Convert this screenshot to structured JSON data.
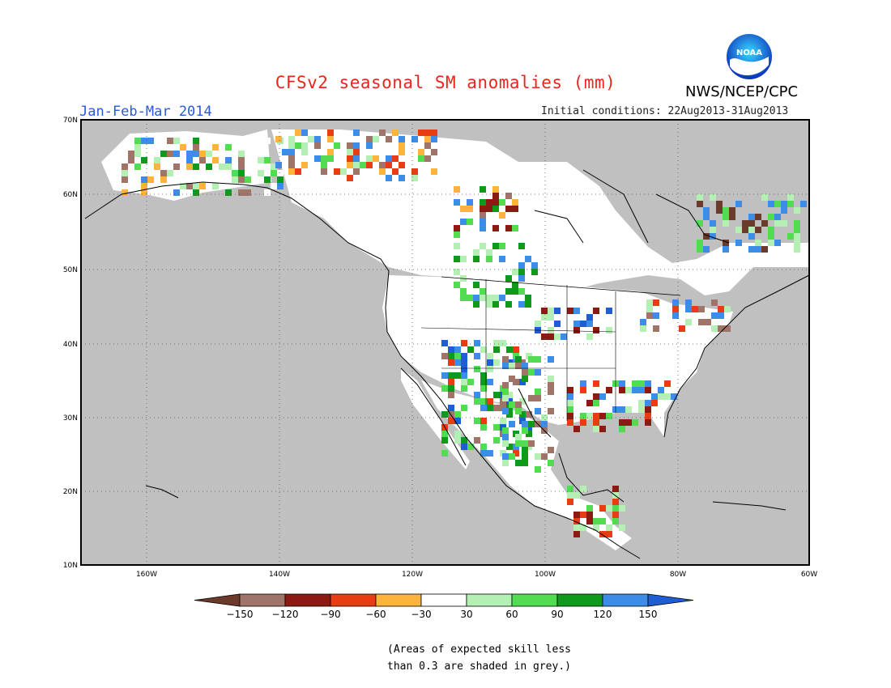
{
  "title": "CFSv2 seasonal SM anomalies (mm)",
  "period": "Jan-Feb-Mar 2014",
  "initial_conditions": "Initial conditions: 22Aug2013-31Aug2013",
  "agency": "NWS/NCEP/CPC",
  "logo_text": "NOAA",
  "lat_labels": [
    "70N",
    "60N",
    "50N",
    "40N",
    "30N",
    "20N",
    "10N"
  ],
  "lon_labels": [
    "160W",
    "140W",
    "120W",
    "100W",
    "80W",
    "60W"
  ],
  "colorbar": {
    "labels": [
      "-150",
      "-120",
      "-90",
      "-60",
      "-30",
      "30",
      "60",
      "90",
      "120",
      "150"
    ],
    "colors": [
      "#6b3a2a",
      "#a07468",
      "#8b1a12",
      "#e83c14",
      "#fcb43c",
      "#ffffff",
      "#b4f0b4",
      "#52dc52",
      "#0f9a1e",
      "#3c8ce8",
      "#1e5ed2"
    ]
  },
  "footnote": [
    "(Areas of expected skill less",
    "than 0.3 are shaded in grey.)"
  ],
  "colors": {
    "grey": "#c0c0c0",
    "title": "#e8261c",
    "period": "#2a5bd7"
  }
}
